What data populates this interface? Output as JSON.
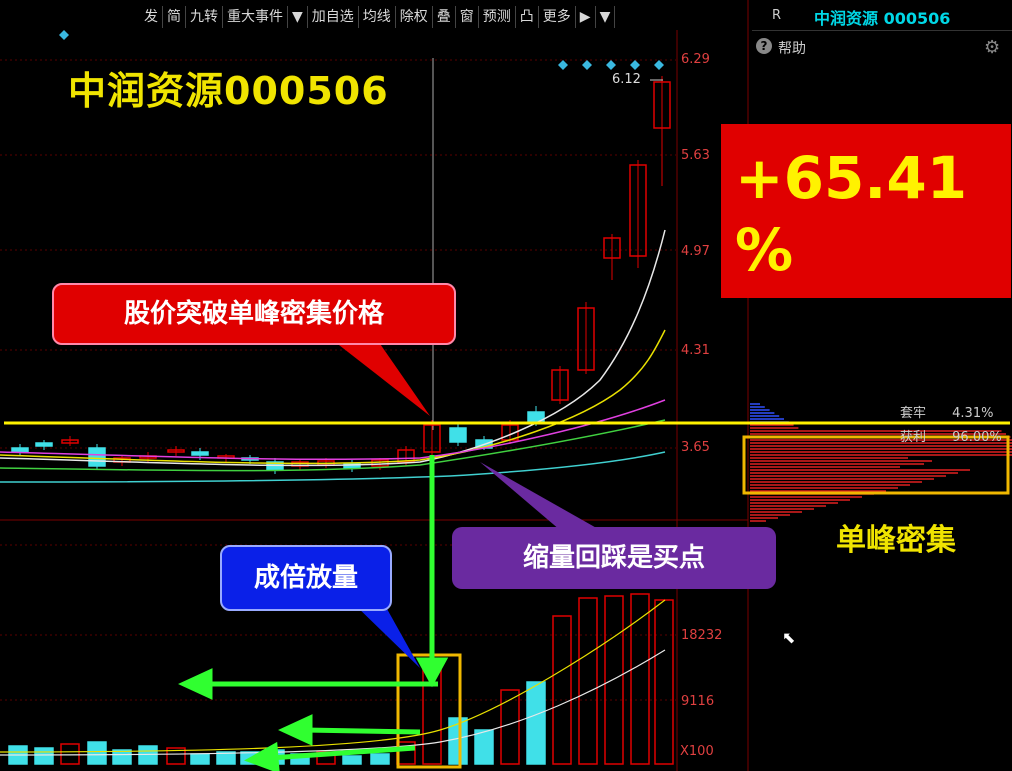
{
  "toolbar": {
    "items": [
      "发",
      "简",
      "九转",
      "重大事件",
      "▼",
      "加自选",
      "均线",
      "除权",
      "叠",
      "窗",
      "预测",
      "凸",
      "更多",
      "▶",
      "▼"
    ]
  },
  "right_panel": {
    "r_mark": "R",
    "stock_title": "中润资源 000506",
    "help_label": "帮助",
    "cost_label_1": "套牢",
    "cost_value_1": "4.31%",
    "cost_label_2": "获利",
    "cost_value_2": "96.00%"
  },
  "annotations": {
    "title": "中润资源000506",
    "pct_line1": "+65.41",
    "pct_line2": "%",
    "callout_breakout": "股价突破单峰密集价格",
    "callout_volume": "成倍放量",
    "callout_pullback": "缩量回踩是买点",
    "single_peak": "单峰密集"
  },
  "price_axis": {
    "labels": [
      "6.29",
      "5.63",
      "4.97",
      "4.31",
      "3.65"
    ],
    "max_marker": "6.12"
  },
  "volume_axis": {
    "labels": [
      "18232",
      "9116"
    ],
    "unit": "X100"
  },
  "colors": {
    "up": "#e00000",
    "down": "#40e0e8",
    "accent_yellow": "#f0e400",
    "callout_red": "#e00000",
    "callout_blue": "#0a20e8",
    "callout_purple": "#6a2aa0"
  }
}
